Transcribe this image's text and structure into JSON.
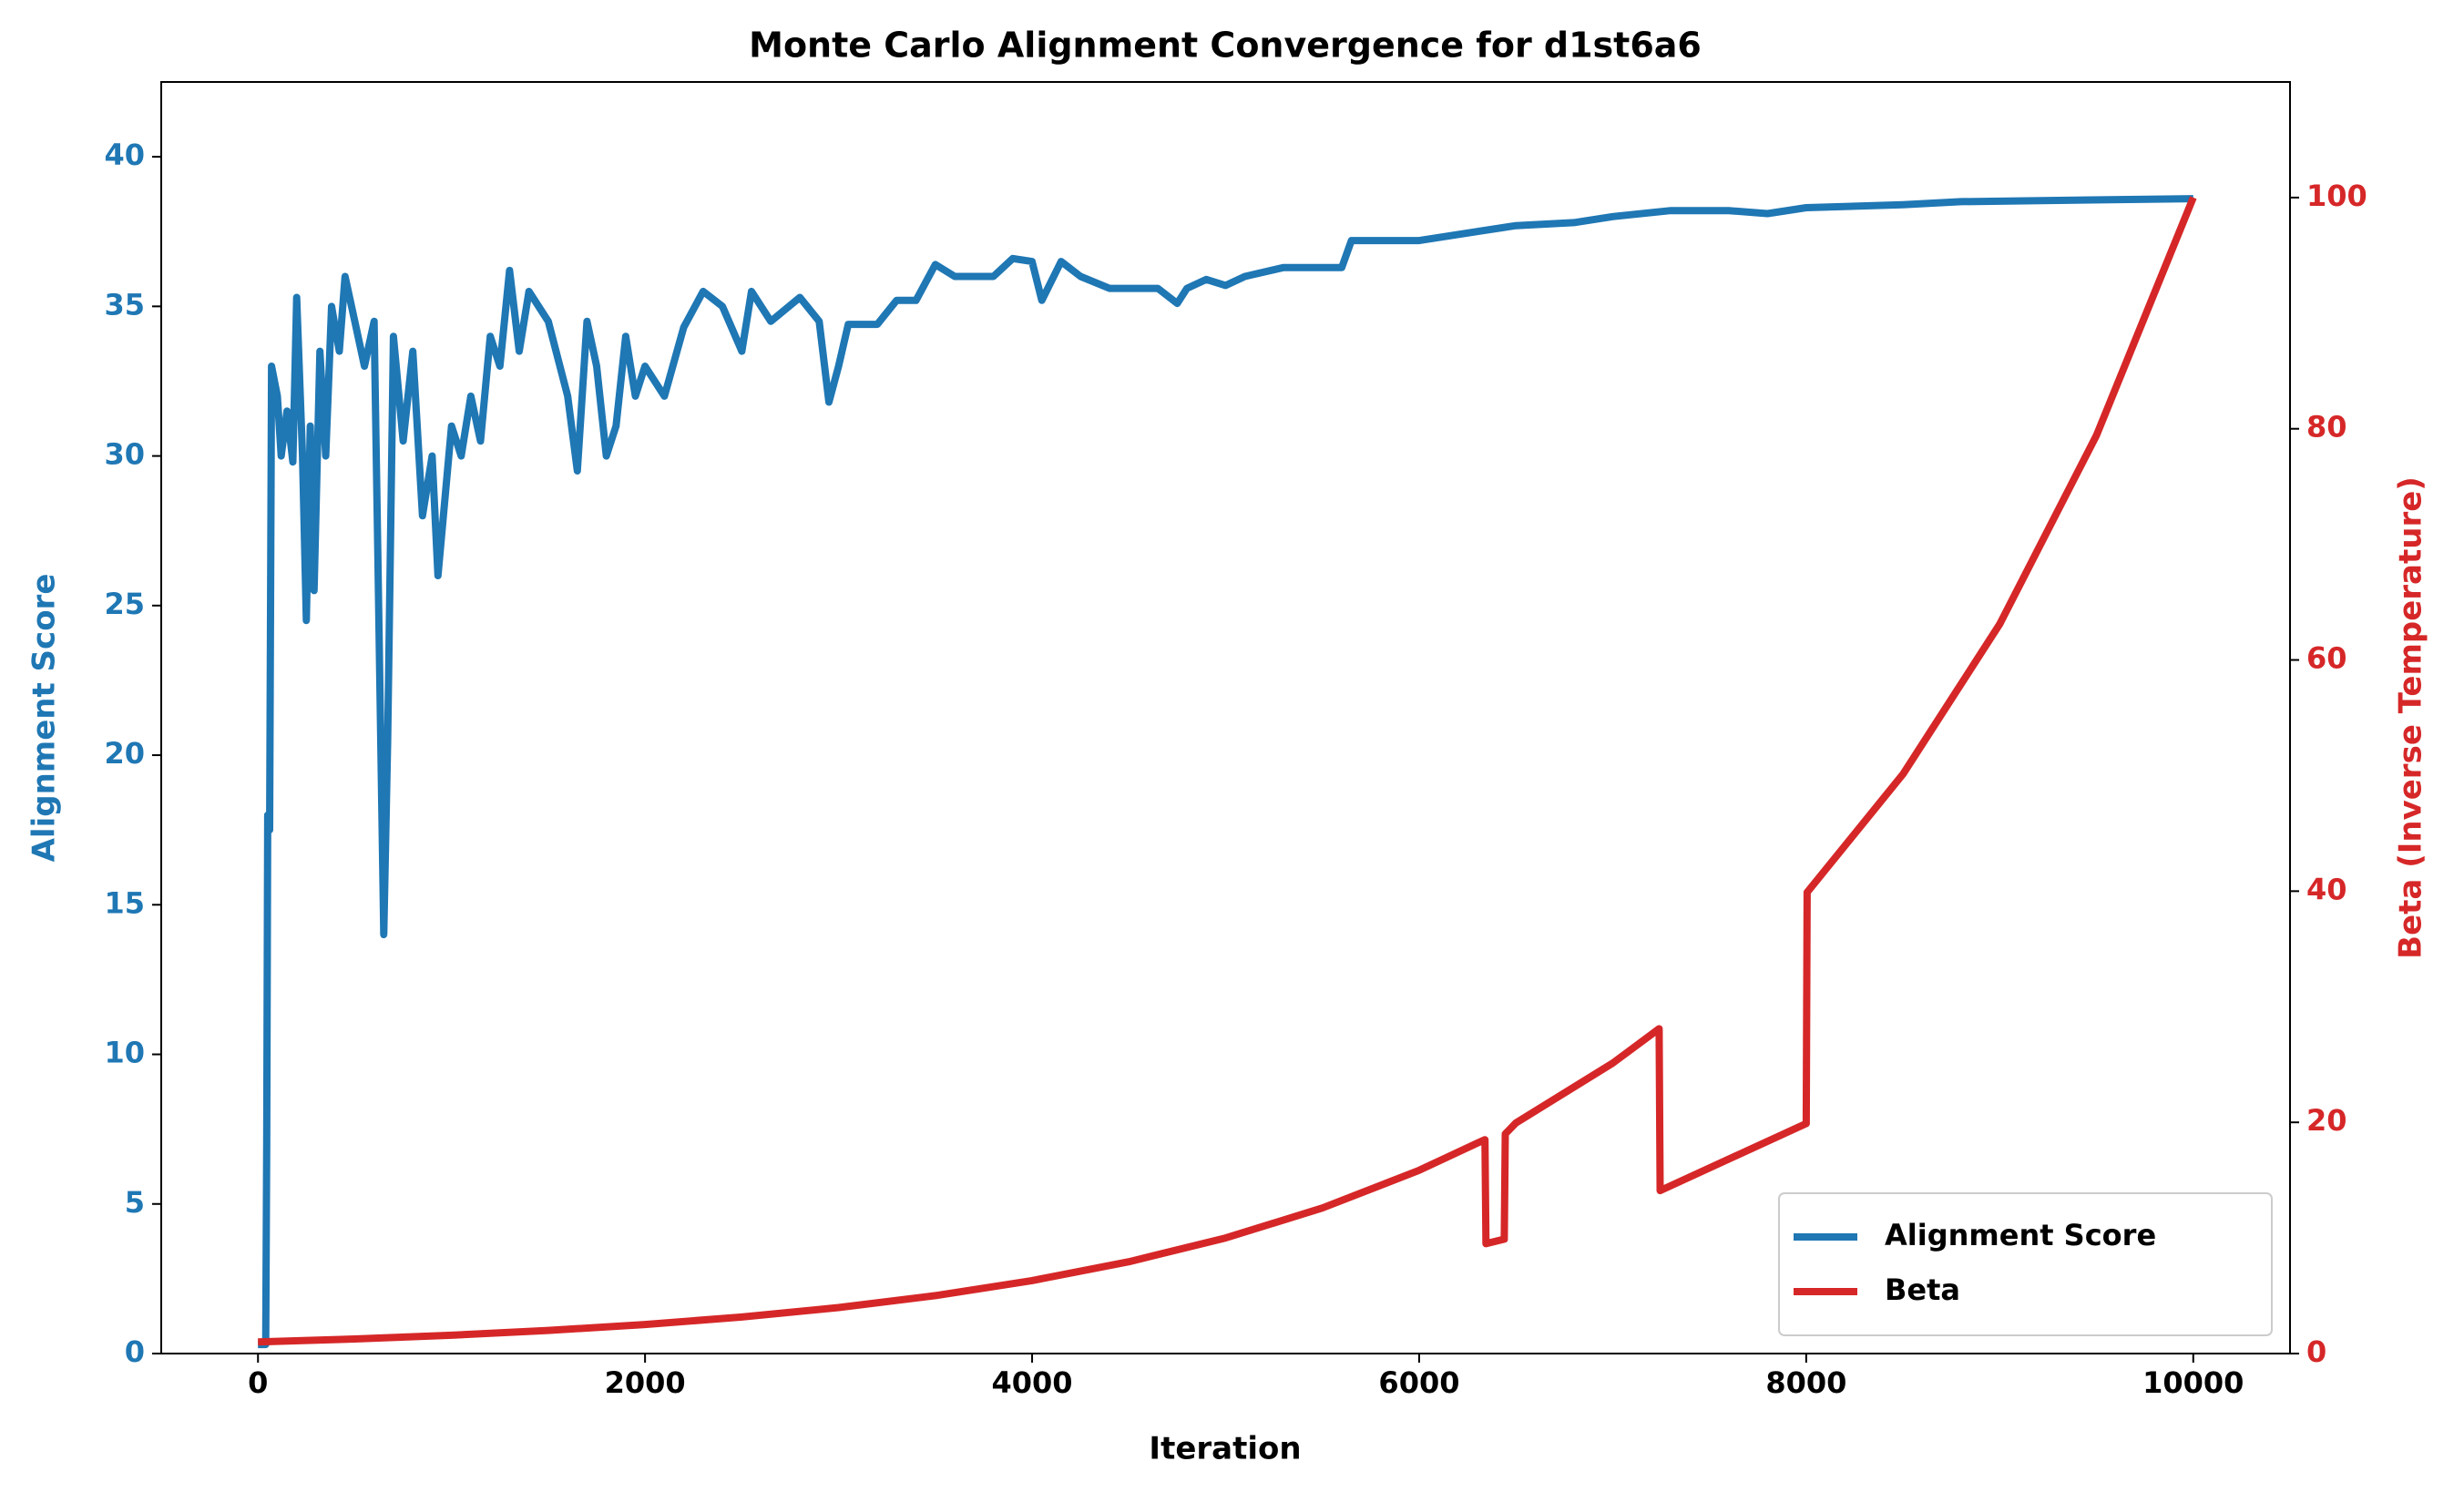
{
  "chart_data": {
    "type": "line",
    "title": "Monte Carlo Alignment Convergence for d1st6a6",
    "xlabel": "Iteration",
    "ylabel": "Alignment Score",
    "y2label": "Beta (Inverse Temperature)",
    "xlim": [
      -500,
      10500
    ],
    "xticks": [
      0,
      2000,
      4000,
      6000,
      8000,
      10000
    ],
    "ylim": [
      0,
      42.5
    ],
    "yticks": [
      0,
      5,
      10,
      15,
      20,
      25,
      30,
      35,
      40
    ],
    "y2lim": [
      0,
      110
    ],
    "y2ticks": [
      0,
      20,
      40,
      60,
      80,
      100
    ],
    "legend": "lower right",
    "grid": false,
    "series": [
      {
        "name": "Alignment Score",
        "color": "#1f77b4",
        "axis": "y",
        "x": [
          0,
          40,
          45,
          50,
          60,
          70,
          100,
          120,
          150,
          180,
          200,
          230,
          250,
          270,
          290,
          320,
          350,
          380,
          420,
          450,
          500,
          550,
          600,
          620,
          650,
          670,
          700,
          750,
          800,
          850,
          900,
          930,
          1000,
          1050,
          1100,
          1150,
          1200,
          1250,
          1300,
          1350,
          1400,
          1500,
          1600,
          1650,
          1700,
          1750,
          1800,
          1850,
          1900,
          1950,
          2000,
          2100,
          2200,
          2300,
          2400,
          2500,
          2550,
          2650,
          2800,
          2900,
          2950,
          3000,
          3050,
          3200,
          3300,
          3400,
          3500,
          3600,
          3800,
          3900,
          4000,
          4050,
          4150,
          4250,
          4400,
          4650,
          4750,
          4800,
          4900,
          5000,
          5100,
          5300,
          5600,
          5650,
          6000,
          6300,
          6500,
          6800,
          7000,
          7300,
          7600,
          7800,
          8000,
          8500,
          8800,
          10000
        ],
        "values": [
          0.3,
          0.3,
          7,
          18,
          17.5,
          33,
          32,
          30,
          31.5,
          29.8,
          35.3,
          30,
          24.5,
          31,
          25.5,
          33.5,
          30,
          35,
          33.5,
          36,
          34.5,
          33,
          34.5,
          26.5,
          14,
          20.5,
          34,
          30.5,
          33.5,
          28,
          30,
          26,
          31,
          30,
          32,
          30.5,
          34,
          33,
          36.2,
          33.5,
          35.5,
          34.5,
          32,
          29.5,
          34.5,
          33,
          30,
          31,
          34,
          32,
          33,
          32,
          34.3,
          35.5,
          35,
          33.5,
          35.5,
          34.5,
          35.3,
          34.5,
          31.8,
          33,
          34.4,
          34.4,
          35.2,
          35.2,
          36.4,
          36,
          36,
          36.6,
          36.5,
          35.2,
          36.5,
          36,
          35.6,
          35.6,
          35.1,
          35.6,
          35.9,
          35.7,
          36,
          36.3,
          36.3,
          37.2,
          37.2,
          37.5,
          37.7,
          37.8,
          38,
          38.2,
          38.2,
          38.1,
          38.3,
          38.4,
          38.5,
          38.6
        ]
      },
      {
        "name": "Beta",
        "color": "#d62728",
        "axis": "y2",
        "x": [
          0,
          500,
          1000,
          1500,
          2000,
          2500,
          3000,
          3500,
          4000,
          4500,
          5000,
          5500,
          6000,
          6300,
          6340,
          6345,
          6440,
          6445,
          6500,
          7000,
          7240,
          7245,
          8000,
          8005,
          8500,
          9000,
          9500,
          10000
        ],
        "values": [
          1,
          1.26,
          1.58,
          2,
          2.51,
          3.16,
          3.98,
          5.01,
          6.31,
          7.94,
          10,
          12.59,
          15.85,
          18.2,
          18.5,
          9.5,
          9.9,
          19,
          19.95,
          25.12,
          28.1,
          14.1,
          19.9,
          39.9,
          50.12,
          63.1,
          79.43,
          100
        ]
      }
    ]
  }
}
